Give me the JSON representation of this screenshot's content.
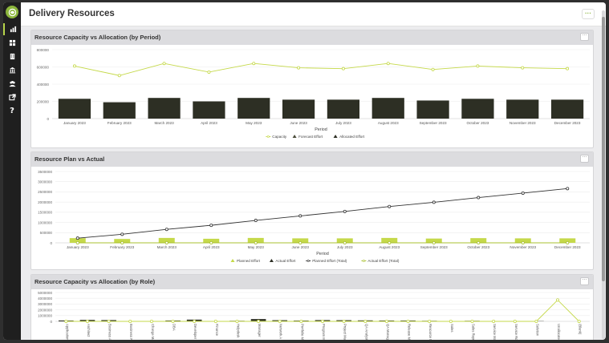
{
  "header": {
    "title": "Delivery Resources",
    "more_label": "···"
  },
  "sidebar": {
    "items": [
      {
        "icon": "bar-chart-icon",
        "active": true
      },
      {
        "icon": "grid-icon",
        "active": false
      },
      {
        "icon": "building-icon",
        "active": false
      },
      {
        "icon": "bank-icon",
        "active": false
      },
      {
        "icon": "people-icon",
        "active": false
      },
      {
        "icon": "external-link-icon",
        "active": false
      },
      {
        "icon": "help-icon",
        "active": false,
        "label": "?"
      }
    ]
  },
  "colors": {
    "lime": "#c5d94a",
    "lime_dark": "#a9c02f",
    "dark_bar": "#2d2f24",
    "line_dark": "#333333",
    "accent": "#8cb63c"
  },
  "panels": [
    {
      "title": "Resource Capacity vs Allocation (by Period)",
      "more_label": "···"
    },
    {
      "title": "Resource Plan vs Actual",
      "more_label": "···"
    },
    {
      "title": "Resource Capacity vs Allocation (by Role)",
      "more_label": "···"
    }
  ],
  "chart_data": [
    {
      "type": "bar",
      "title": "Resource Capacity vs Allocation (by Period)",
      "xlabel": "Period",
      "ylabel": "",
      "ylim": [
        0,
        800000
      ],
      "y_ticks": [
        "0",
        "200000",
        "400000",
        "600000",
        "800000"
      ],
      "categories": [
        "January 2023",
        "February 2023",
        "March 2023",
        "April 2023",
        "May 2023",
        "June 2023",
        "July 2023",
        "August 2023",
        "September 2023",
        "October 2023",
        "November 2023",
        "December 2023"
      ],
      "series": [
        {
          "name": "Capacity",
          "kind": "line",
          "values": [
            610000,
            500000,
            640000,
            540000,
            640000,
            590000,
            580000,
            640000,
            570000,
            610000,
            590000,
            580000
          ]
        },
        {
          "name": "Forecast Effort",
          "kind": "bar",
          "values": [
            0,
            0,
            0,
            0,
            0,
            0,
            0,
            0,
            0,
            0,
            0,
            0
          ]
        },
        {
          "name": "Allocated Effort",
          "kind": "bar",
          "values": [
            230000,
            190000,
            240000,
            200000,
            240000,
            220000,
            220000,
            240000,
            210000,
            230000,
            220000,
            220000
          ]
        }
      ],
      "legend": "bottom",
      "grid": true
    },
    {
      "type": "bar",
      "title": "Resource Plan vs Actual",
      "xlabel": "Period",
      "ylabel": "",
      "ylim": [
        0,
        3500000
      ],
      "y_ticks": [
        "0",
        "500000",
        "1000000",
        "1500000",
        "2000000",
        "2500000",
        "3000000",
        "3500000"
      ],
      "categories": [
        "January 2023",
        "February 2023",
        "March 2023",
        "April 2023",
        "May 2023",
        "June 2023",
        "July 2023",
        "August 2023",
        "September 2023",
        "October 2023",
        "November 2023",
        "December 2023"
      ],
      "series": [
        {
          "name": "Planned Effort",
          "kind": "bar",
          "values": [
            230000,
            190000,
            240000,
            200000,
            240000,
            220000,
            220000,
            240000,
            210000,
            230000,
            220000,
            220000
          ]
        },
        {
          "name": "Actual Effort",
          "kind": "bar",
          "values": [
            0,
            0,
            0,
            0,
            0,
            0,
            0,
            0,
            0,
            0,
            0,
            0
          ]
        },
        {
          "name": "Planned Effort (Total)",
          "kind": "line",
          "values": [
            230000,
            420000,
            660000,
            860000,
            1100000,
            1320000,
            1540000,
            1780000,
            1990000,
            2220000,
            2440000,
            2660000
          ]
        },
        {
          "name": "Actual Effort (Total)",
          "kind": "line",
          "values": [
            0,
            0,
            0,
            0,
            0,
            0,
            0,
            0,
            0,
            0,
            0,
            0
          ]
        }
      ],
      "legend": "bottom",
      "grid": true
    },
    {
      "type": "bar",
      "title": "Resource Capacity vs Allocation (by Role)",
      "xlabel": "",
      "ylabel": "",
      "ylim": [
        0,
        5000000
      ],
      "y_ticks": [
        "0",
        "1000000",
        "2000000",
        "3000000",
        "4000000",
        "5000000"
      ],
      "categories": [
        "Application",
        "Architect",
        "Business A",
        "Business R",
        "Change Ma",
        "DBA",
        "Developer",
        "Finance",
        "Helpdesk",
        "Manager",
        "Network A",
        "Portfolio M",
        "Program M",
        "Project Ma",
        "QA Analyst",
        "QA Manage",
        "Release M",
        "Resource M",
        "Sales",
        "Sales Repr",
        "Service Ma",
        "Service Ro",
        "Solution",
        "Unallocated",
        "(Blank)"
      ],
      "series": [
        {
          "name": "Capacity",
          "kind": "line",
          "values": [
            0,
            0,
            0,
            0,
            0,
            0,
            0,
            0,
            0,
            0,
            0,
            0,
            0,
            0,
            0,
            0,
            0,
            0,
            0,
            0,
            0,
            0,
            0,
            3700000,
            0
          ]
        },
        {
          "name": "Allocated Effort",
          "kind": "bar",
          "values": [
            150000,
            250000,
            220000,
            40000,
            40000,
            150000,
            300000,
            60000,
            100000,
            400000,
            200000,
            140000,
            220000,
            200000,
            170000,
            150000,
            150000,
            100000,
            40000,
            100000,
            40000,
            40000,
            40000,
            0,
            0
          ]
        }
      ],
      "legend": "none",
      "grid": true
    }
  ]
}
